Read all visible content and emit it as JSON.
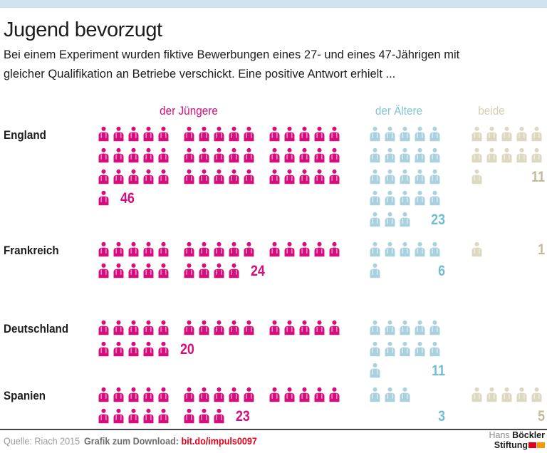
{
  "header": {
    "title": "Jugend bevorzugt",
    "subtitle_line1": "Bei einem Experiment wurden fiktive Bewerbungen eines 27- und eines 47-Jährigen mit",
    "subtitle_line2": "gleicher Qualifikation an Betriebe verschickt. Eine positive Antwort erhielt ..."
  },
  "chart_data": {
    "type": "pictogram",
    "description": "Anzahl positiver Antworten auf fiktive Bewerbungen eines 27-Jährigen (der Jüngere), eines 47-Jährigen (der Ältere) oder beider, je Land",
    "legend_position": "top",
    "columns": [
      {
        "key": "juengere",
        "label": "der Jüngere",
        "figure_color": "#d40e7c",
        "number_color": "#d40e7c",
        "header_color": "#d40e7c"
      },
      {
        "key": "aeltere",
        "label": "der Ältere",
        "figure_color": "#aad2de",
        "number_color": "#73bdd2",
        "header_color": "#85c4d7"
      },
      {
        "key": "beide",
        "label": "beide",
        "figure_color": "#ddd8c0",
        "number_color": "#c0ba9a",
        "header_color": "#d5cfb3"
      }
    ],
    "rows": [
      {
        "country": "England",
        "juengere": 46,
        "aeltere": 23,
        "beide": 11
      },
      {
        "country": "Frankreich",
        "juengere": 24,
        "aeltere": 6,
        "beide": 1
      },
      {
        "country": "Deutschland",
        "juengere": 20,
        "aeltere": 11,
        "beide": 0
      },
      {
        "country": "Spanien",
        "juengere": 23,
        "aeltere": 3,
        "beide": 5
      }
    ]
  },
  "footer": {
    "source": "Quelle: Riach 2015",
    "download_label": "Grafik zum Download:",
    "download_link": "bit.do/impuls0097",
    "logo": {
      "line1_light": "Hans",
      "line1_bold": "Böckler",
      "line2_bold": "Stiftung"
    }
  },
  "colors": {
    "top_bar": "#cfe3ee",
    "link_red": "#e2001a",
    "logo_block_red": "#e2001a",
    "logo_block_orange": "#f59b00",
    "footer_line": "#464646"
  }
}
